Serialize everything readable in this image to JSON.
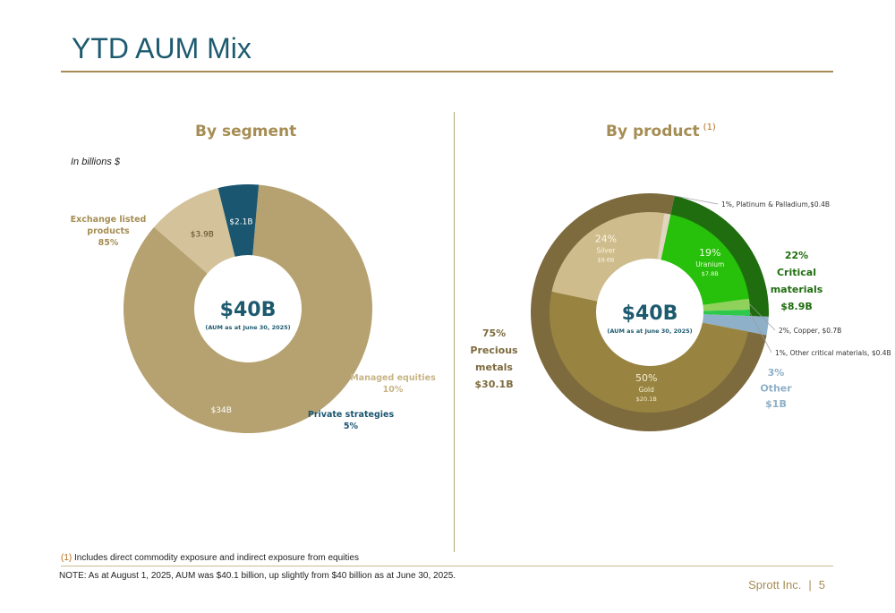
{
  "header": {
    "title": "YTD AUM Mix"
  },
  "footer": {
    "footnote_mark": "(1)",
    "footnote_text": "Includes direct commodity exposure and indirect exposure from equities",
    "note": "NOTE: As at August 1, 2025, AUM was $40.1 billion, up slightly from $40 billion as at June 30, 2025.",
    "company": "Sprott Inc.",
    "separator": "|",
    "page_number": "5"
  },
  "colors": {
    "accent_gold": "#a58d53",
    "title_teal": "#1d5a6f",
    "etp": "#b6a270",
    "managed_equities": "#d3c29a",
    "private_strategies": "#1a5670",
    "precious_outer": "#7d6b3e",
    "gold": "#988440",
    "silver": "#cebc8c",
    "critical_outer": "#1f6d0f",
    "uranium": "#27c00a",
    "copper": "#8fd15a",
    "other_critical": "#2ec94a",
    "other": "#8eb0c8"
  },
  "chart_data": [
    {
      "type": "pie",
      "subtype": "donut",
      "title": "By segment",
      "unit_note": "In billions $",
      "center_value": "$40B",
      "center_caption": "(AUM as at June 30, 2025)",
      "slices": [
        {
          "key": "etp",
          "label_lines": [
            "Exchange listed",
            "products",
            "85%"
          ],
          "percent": 85,
          "value": 34,
          "value_label": "$34B"
        },
        {
          "key": "managed_equities",
          "label_lines": [
            "Managed equities",
            "10%"
          ],
          "percent": 10,
          "value": 3.9,
          "value_label": "$3.9B"
        },
        {
          "key": "private_strategies",
          "label_lines": [
            "Private strategies",
            "5%"
          ],
          "percent": 5,
          "value": 2.1,
          "value_label": "$2.1B"
        }
      ]
    },
    {
      "type": "pie",
      "subtype": "nested-donut",
      "title": "By product",
      "title_note": "(1)",
      "center_value": "$40B",
      "center_caption": "(AUM as at June 30, 2025)",
      "outer_ring": [
        {
          "key": "precious",
          "label_lines": [
            "75%",
            "Precious",
            "metals",
            "$30.1B"
          ],
          "percent": 75,
          "value": 30.1
        },
        {
          "key": "critical",
          "label_lines": [
            "22%",
            "Critical",
            "materials",
            "$8.9B"
          ],
          "percent": 22,
          "value": 8.9
        },
        {
          "key": "other",
          "label_lines": [
            "3%",
            "Other",
            "$1B"
          ],
          "percent": 3,
          "value": 1
        }
      ],
      "inner_ring": [
        {
          "key": "gold",
          "group": "precious",
          "label_lines": [
            "50%",
            "Gold",
            "$20.1B"
          ],
          "percent": 50,
          "value": 20.1
        },
        {
          "key": "silver",
          "group": "precious",
          "label_lines": [
            "24%",
            "Silver",
            "$9.6B"
          ],
          "percent": 24,
          "value": 9.6
        },
        {
          "key": "platinum",
          "group": "precious",
          "label": "1%, Platinum & Palladium,$0.4B",
          "percent": 1,
          "value": 0.4
        },
        {
          "key": "uranium",
          "group": "critical",
          "label_lines": [
            "19%",
            "Uranium",
            "$7.8B"
          ],
          "percent": 19,
          "value": 7.8
        },
        {
          "key": "copper",
          "group": "critical",
          "label": "2%, Copper, $0.7B",
          "percent": 2,
          "value": 0.7
        },
        {
          "key": "other_critical",
          "group": "critical",
          "label": "1%, Other critical materials, $0.4B",
          "percent": 1,
          "value": 0.4
        },
        {
          "key": "other",
          "group": "other",
          "percent": 3,
          "value": 1
        }
      ]
    }
  ]
}
